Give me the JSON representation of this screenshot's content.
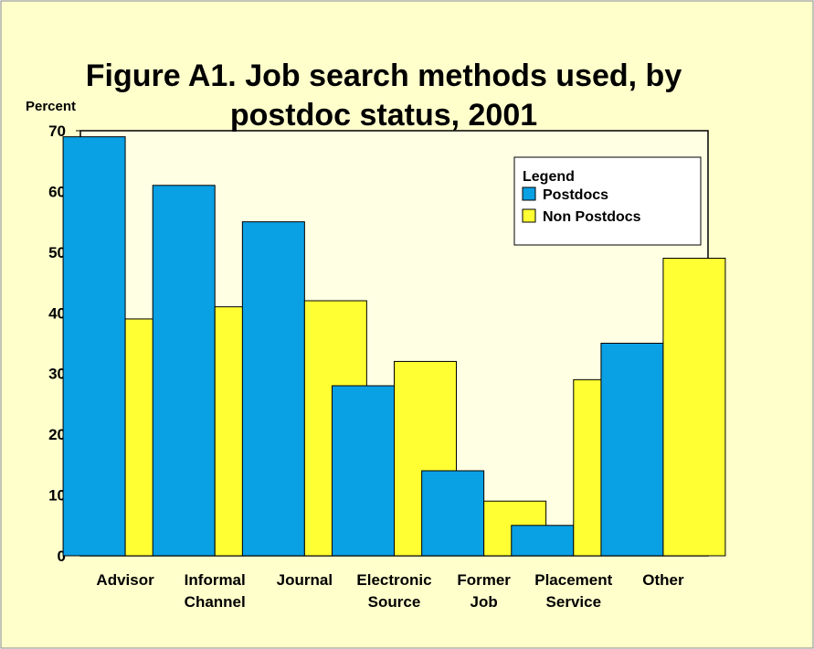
{
  "chart_data": {
    "type": "bar",
    "title": [
      "Figure A1.  Job search methods used, by",
      "postdoc status, 2001"
    ],
    "y_label": "Percent",
    "legend_title": "Legend",
    "categories": [
      "Advisor",
      "Informal Channel",
      "Journal",
      "Electronic Source",
      "Former Job",
      "Placement Service",
      "Other"
    ],
    "series": [
      {
        "name": "Postdocs",
        "color": "#0aa0e4",
        "values": [
          69,
          61,
          55,
          28,
          14,
          5,
          35
        ]
      },
      {
        "name": "Non Postdocs",
        "color": "#ffff33",
        "values": [
          39,
          41,
          42,
          32,
          9,
          29,
          49
        ]
      }
    ],
    "ylim": [
      0,
      70
    ],
    "yticks": [
      0,
      10,
      20,
      30,
      40,
      50,
      60,
      70
    ]
  }
}
